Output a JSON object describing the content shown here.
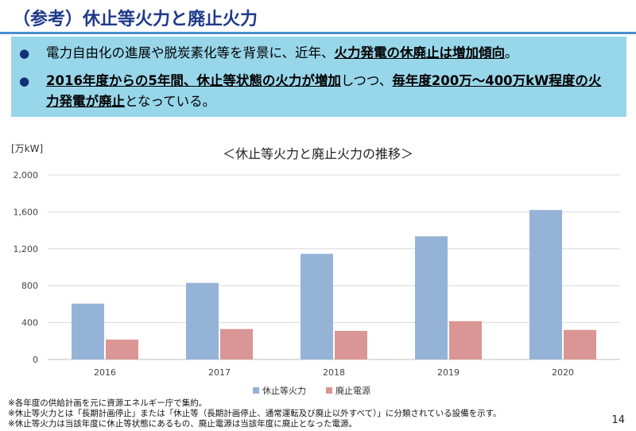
{
  "title": "（参考）休止等火力と廃止火力",
  "summary": {
    "bullet1": [
      {
        "t": "電力自由化の進展や脱炭素化等を背景に、近年、",
        "em": false
      },
      {
        "t": "火力発電の休廃止は増加傾向",
        "em": true
      },
      {
        "t": "。",
        "em": false
      }
    ],
    "bullet2": [
      {
        "t": "2016年度からの5年間、休止等状態の火力が増加",
        "em": true
      },
      {
        "t": "しつつ、",
        "em": false
      },
      {
        "t": "毎年度200万～400万kW程度の火力発電が廃止",
        "em": true
      },
      {
        "t": "となっている。",
        "em": false
      }
    ]
  },
  "chart_data": {
    "type": "bar",
    "title": "＜休止等火力と廃止火力の推移＞",
    "ylabel": "[万kW]",
    "categories": [
      "2016",
      "2017",
      "2018",
      "2019",
      "2020"
    ],
    "series": [
      {
        "name": "休止等火力",
        "values": [
          605,
          830,
          1145,
          1335,
          1620
        ],
        "color": "#95b3d7"
      },
      {
        "name": "廃止電源",
        "values": [
          215,
          330,
          310,
          415,
          320
        ],
        "color": "#d99694"
      }
    ],
    "ylim": [
      0,
      2000
    ],
    "yticks": [
      0,
      400,
      800,
      1200,
      1600,
      2000
    ],
    "ytick_labels": [
      "0",
      "400",
      "800",
      "1,200",
      "1,600",
      "2,000"
    ],
    "grid": true,
    "legend": "bottom-center"
  },
  "notes": [
    "※各年度の供給計画を元に資源エネルギー庁で集約。",
    "※休止等火力とは「長期計画停止」または「休止等（長期計画停止、通常運転及び廃止以外すべて）」に分類されている設備を示す。",
    "※休止等火力は当該年度に休止等状態にあるもの、廃止電源は当該年度に廃止となった電源。"
  ],
  "page_number": "14"
}
